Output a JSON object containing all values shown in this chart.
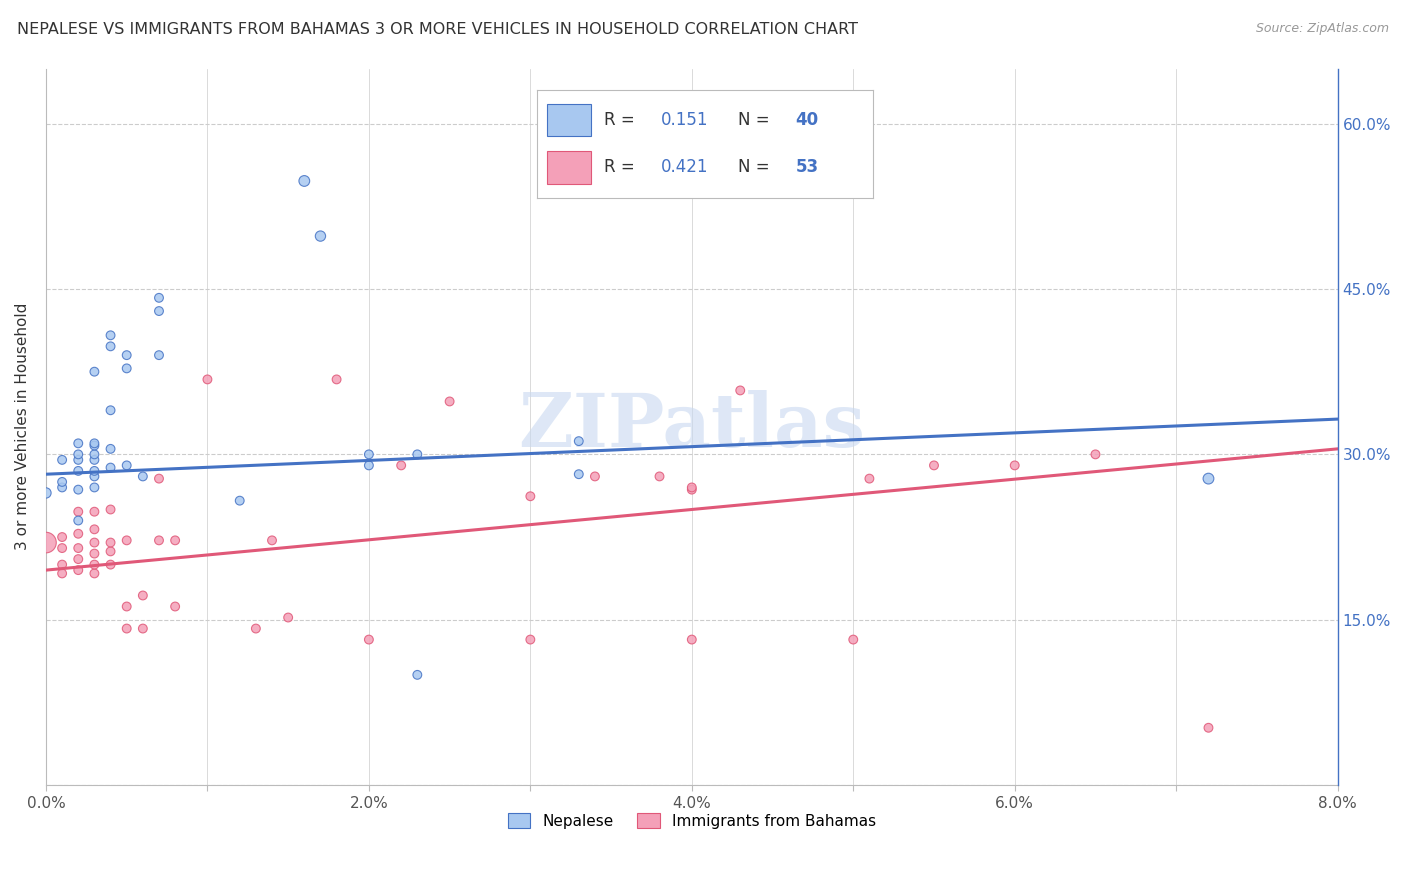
{
  "title": "NEPALESE VS IMMIGRANTS FROM BAHAMAS 3 OR MORE VEHICLES IN HOUSEHOLD CORRELATION CHART",
  "source": "Source: ZipAtlas.com",
  "ylabel": "3 or more Vehicles in Household",
  "xlim": [
    0.0,
    0.08
  ],
  "ylim": [
    0.0,
    0.65
  ],
  "color_blue": "#A8C8F0",
  "color_pink": "#F4A0B8",
  "color_blue_line": "#4472C4",
  "color_pink_line": "#E05878",
  "color_blue_text": "#4472C4",
  "watermark": "ZIPatlas",
  "grid_color": "#CCCCCC",
  "bg_color": "#FFFFFF",
  "nepalese_x": [
    0.0,
    0.001,
    0.001,
    0.001,
    0.002,
    0.002,
    0.002,
    0.002,
    0.002,
    0.002,
    0.003,
    0.003,
    0.003,
    0.003,
    0.003,
    0.003,
    0.003,
    0.003,
    0.004,
    0.004,
    0.004,
    0.004,
    0.004,
    0.005,
    0.005,
    0.005,
    0.006,
    0.007,
    0.007,
    0.007,
    0.012,
    0.016,
    0.017,
    0.02,
    0.02,
    0.023,
    0.023,
    0.033,
    0.033,
    0.072
  ],
  "nepalese_y": [
    0.265,
    0.27,
    0.275,
    0.295,
    0.24,
    0.268,
    0.285,
    0.295,
    0.3,
    0.31,
    0.27,
    0.28,
    0.285,
    0.295,
    0.3,
    0.308,
    0.31,
    0.375,
    0.288,
    0.305,
    0.34,
    0.398,
    0.408,
    0.29,
    0.378,
    0.39,
    0.28,
    0.39,
    0.43,
    0.442,
    0.258,
    0.548,
    0.498,
    0.29,
    0.3,
    0.1,
    0.3,
    0.282,
    0.312,
    0.278
  ],
  "nepalese_sizes": [
    55,
    40,
    40,
    40,
    40,
    40,
    40,
    40,
    40,
    40,
    40,
    40,
    40,
    40,
    40,
    40,
    40,
    40,
    40,
    40,
    40,
    40,
    40,
    40,
    40,
    40,
    40,
    40,
    40,
    40,
    40,
    60,
    55,
    40,
    40,
    40,
    40,
    40,
    40,
    60
  ],
  "bahamas_x": [
    0.0,
    0.001,
    0.001,
    0.001,
    0.001,
    0.002,
    0.002,
    0.002,
    0.002,
    0.002,
    0.003,
    0.003,
    0.003,
    0.003,
    0.003,
    0.003,
    0.004,
    0.004,
    0.004,
    0.004,
    0.005,
    0.005,
    0.005,
    0.006,
    0.006,
    0.007,
    0.007,
    0.008,
    0.008,
    0.01,
    0.013,
    0.014,
    0.015,
    0.018,
    0.02,
    0.022,
    0.025,
    0.03,
    0.03,
    0.034,
    0.038,
    0.04,
    0.04,
    0.04,
    0.043,
    0.05,
    0.051,
    0.055,
    0.06,
    0.065,
    0.072
  ],
  "bahamas_y": [
    0.22,
    0.192,
    0.2,
    0.215,
    0.225,
    0.195,
    0.205,
    0.215,
    0.228,
    0.248,
    0.192,
    0.2,
    0.21,
    0.22,
    0.232,
    0.248,
    0.2,
    0.212,
    0.22,
    0.25,
    0.142,
    0.162,
    0.222,
    0.142,
    0.172,
    0.222,
    0.278,
    0.162,
    0.222,
    0.368,
    0.142,
    0.222,
    0.152,
    0.368,
    0.132,
    0.29,
    0.348,
    0.132,
    0.262,
    0.28,
    0.28,
    0.268,
    0.132,
    0.27,
    0.358,
    0.132,
    0.278,
    0.29,
    0.29,
    0.3,
    0.052
  ],
  "bahamas_sizes": [
    220,
    40,
    40,
    40,
    40,
    40,
    40,
    40,
    40,
    40,
    40,
    40,
    40,
    40,
    40,
    40,
    40,
    40,
    40,
    40,
    40,
    40,
    40,
    40,
    40,
    40,
    40,
    40,
    40,
    40,
    40,
    40,
    40,
    40,
    40,
    40,
    40,
    40,
    40,
    40,
    40,
    40,
    40,
    40,
    40,
    40,
    40,
    40,
    40,
    40,
    40
  ],
  "nep_line_x": [
    0.0,
    0.08
  ],
  "nep_line_y": [
    0.282,
    0.332
  ],
  "bah_line_x": [
    0.0,
    0.08
  ],
  "bah_line_y": [
    0.195,
    0.305
  ]
}
